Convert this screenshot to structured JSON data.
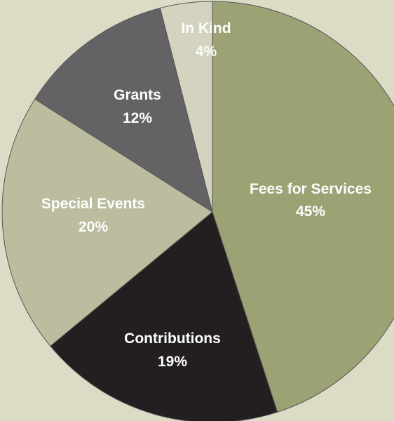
{
  "chart_data": {
    "type": "pie",
    "title": "",
    "slices": [
      {
        "label": "Fees for Services",
        "value": 45,
        "value_label": "45%",
        "color": "#9da274"
      },
      {
        "label": "Contributions",
        "value": 19,
        "value_label": "19%",
        "color": "#231f20"
      },
      {
        "label": "Special Events",
        "value": 20,
        "value_label": "20%",
        "color": "#bbbd9e"
      },
      {
        "label": "Grants",
        "value": 12,
        "value_label": "12%",
        "color": "#646264"
      },
      {
        "label": "In Kind",
        "value": 4,
        "value_label": "4%",
        "color": "#d3d3bf"
      }
    ],
    "start": "12 o'clock",
    "direction": "clockwise",
    "legend": "none",
    "background": "#dbdbc6"
  }
}
